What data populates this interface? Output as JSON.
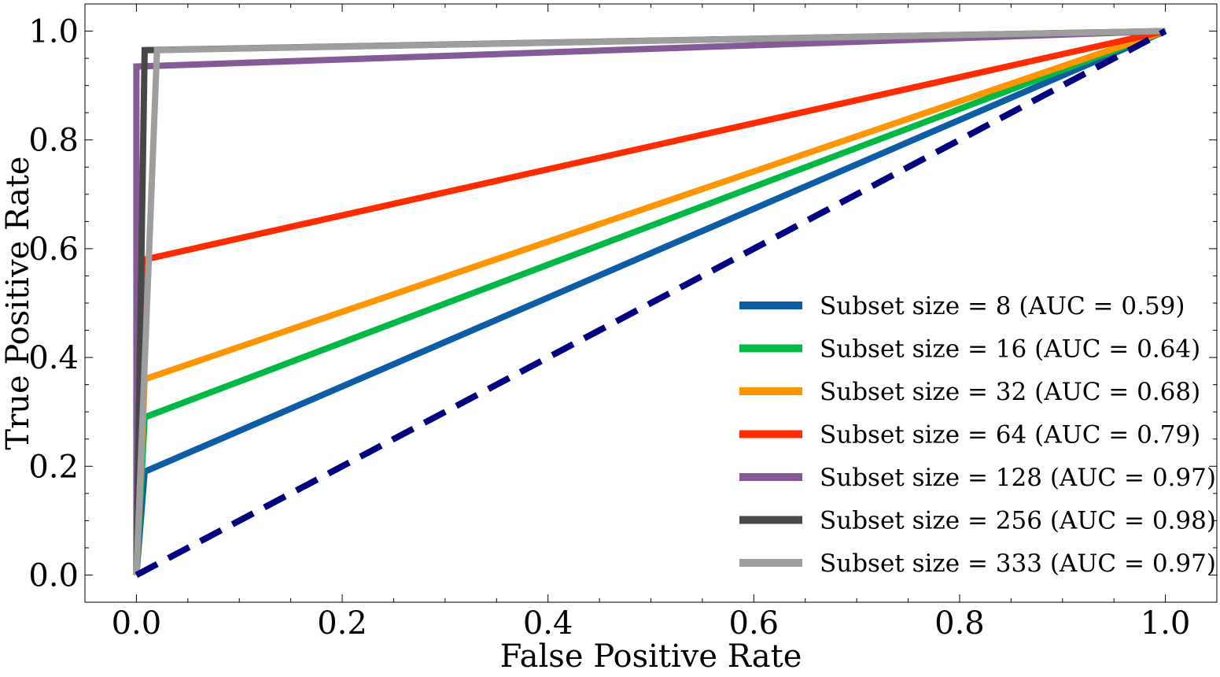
{
  "chart_data": {
    "type": "line",
    "title": "",
    "xlabel": "False Positive Rate",
    "ylabel": "True Positive Rate",
    "xlim": [
      -0.05,
      1.05
    ],
    "ylim": [
      -0.05,
      1.05
    ],
    "xticks": [
      0.0,
      0.2,
      0.4,
      0.6,
      0.8,
      1.0
    ],
    "xtick_labels": [
      "0.0",
      "0.2",
      "0.4",
      "0.6",
      "0.8",
      "1.0"
    ],
    "yticks": [
      0.0,
      0.2,
      0.4,
      0.6,
      0.8,
      1.0
    ],
    "ytick_labels": [
      "0.0",
      "0.2",
      "0.4",
      "0.6",
      "0.8",
      "1.0"
    ],
    "grid": false,
    "legend_position": "lower-right",
    "series": [
      {
        "name": "Subset size = 8 (AUC = 0.59)",
        "color": "#0c5da5",
        "x": [
          0.0,
          0.008,
          1.0
        ],
        "y": [
          0.0,
          0.19,
          1.0
        ]
      },
      {
        "name": "Subset size = 16 (AUC = 0.64)",
        "color": "#00b945",
        "x": [
          0.0,
          0.008,
          1.0
        ],
        "y": [
          0.0,
          0.29,
          1.0
        ]
      },
      {
        "name": "Subset size = 32 (AUC = 0.68)",
        "color": "#ff9500",
        "x": [
          0.0,
          0.008,
          1.0
        ],
        "y": [
          0.0,
          0.36,
          1.0
        ]
      },
      {
        "name": "Subset size = 64 (AUC = 0.79)",
        "color": "#ff2c00",
        "x": [
          0.0,
          0.008,
          1.0
        ],
        "y": [
          0.0,
          0.58,
          1.0
        ]
      },
      {
        "name": "Subset size = 128 (AUC = 0.97)",
        "color": "#845b97",
        "x": [
          0.0,
          0.0,
          1.0
        ],
        "y": [
          0.0,
          0.935,
          1.0
        ]
      },
      {
        "name": "Subset size = 256 (AUC = 0.98)",
        "color": "#474747",
        "x": [
          0.0,
          0.008,
          1.0
        ],
        "y": [
          0.0,
          0.965,
          1.0
        ]
      },
      {
        "name": "Subset size = 333 (AUC = 0.97)",
        "color": "#9e9e9e",
        "x": [
          0.0,
          0.02,
          1.0
        ],
        "y": [
          0.0,
          0.965,
          1.0
        ]
      }
    ],
    "reference_line": {
      "name": "chance",
      "color": "#000080",
      "style": "dashed",
      "x": [
        0.0,
        1.0
      ],
      "y": [
        0.0,
        1.0
      ]
    }
  }
}
